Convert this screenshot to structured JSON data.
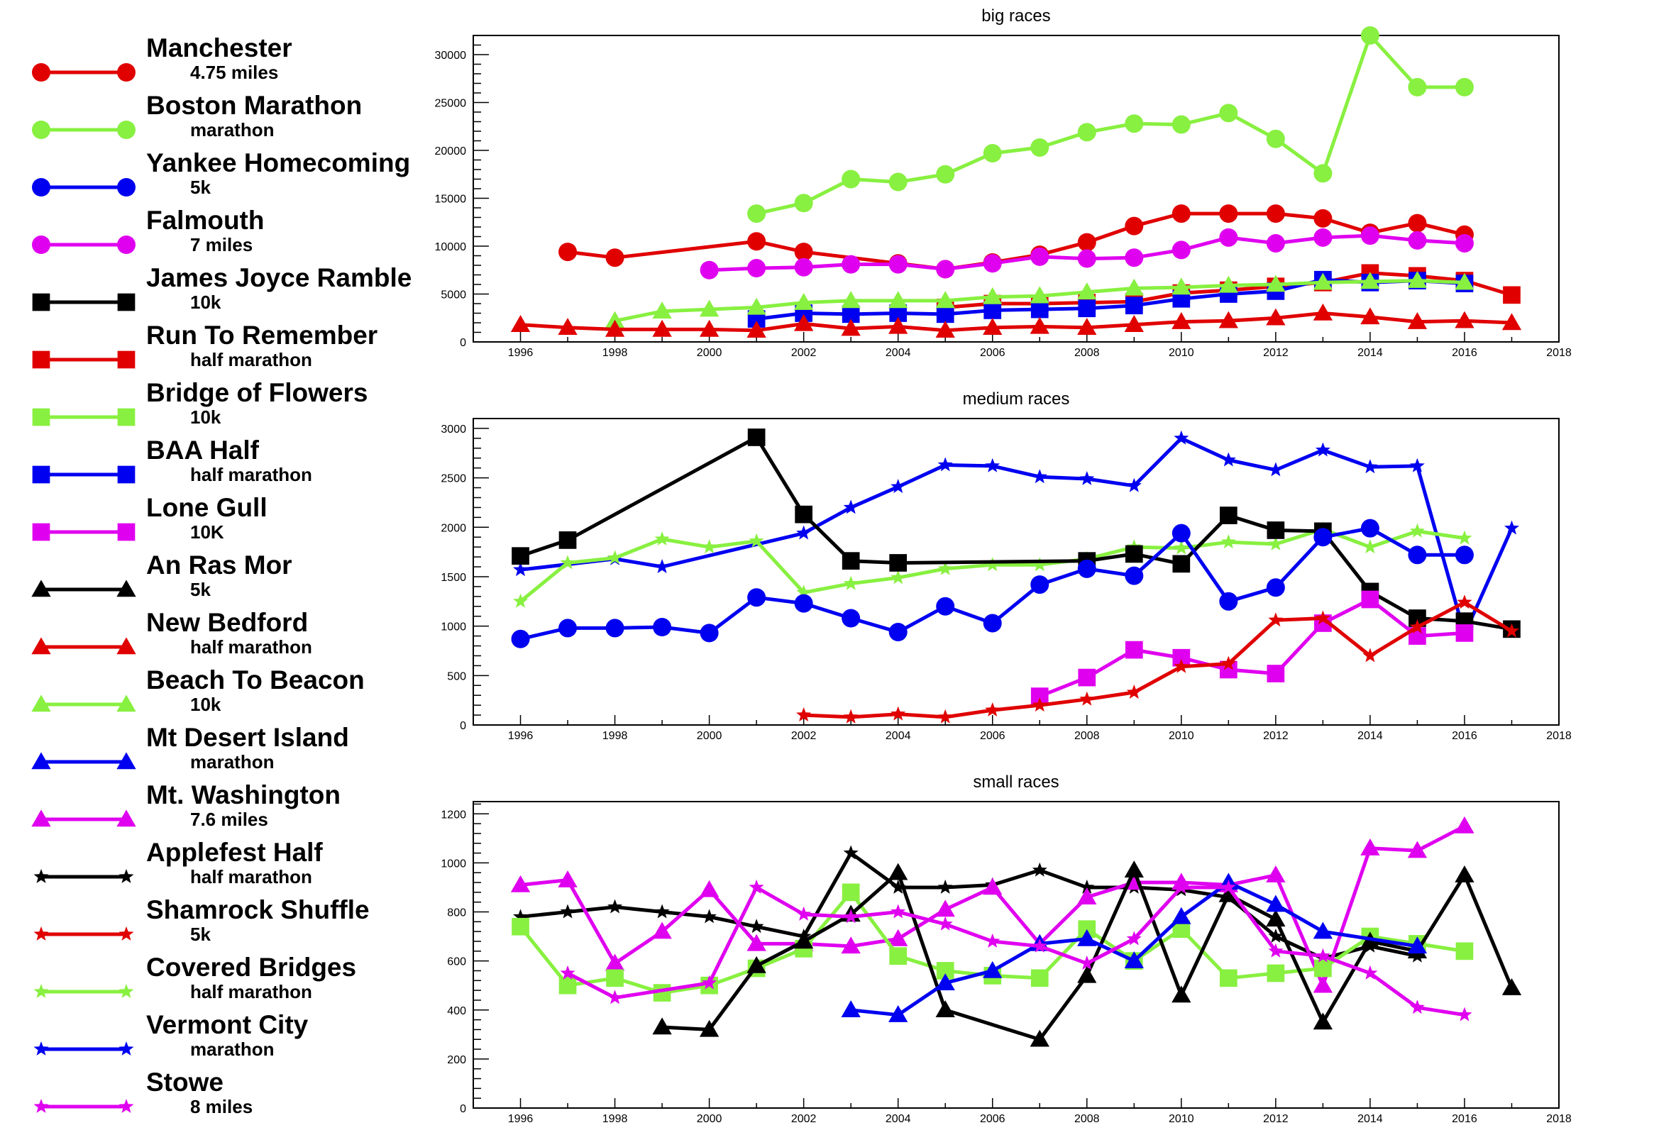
{
  "legend": [
    {
      "name": "Manchester",
      "sub": "4.75 miles",
      "color": "#e00000",
      "marker": "circle"
    },
    {
      "name": "Boston Marathon",
      "sub": "marathon",
      "color": "#88f040",
      "marker": "circle"
    },
    {
      "name": "Yankee Homecoming",
      "sub": "5k",
      "color": "#0000f0",
      "marker": "circle"
    },
    {
      "name": "Falmouth",
      "sub": "7 miles",
      "color": "#e000f0",
      "marker": "circle"
    },
    {
      "name": "James Joyce Ramble",
      "sub": "10k",
      "color": "#000000",
      "marker": "square"
    },
    {
      "name": "Run To Remember",
      "sub": "half marathon",
      "color": "#e00000",
      "marker": "square"
    },
    {
      "name": "Bridge of Flowers",
      "sub": "10k",
      "color": "#88f040",
      "marker": "square"
    },
    {
      "name": "BAA Half",
      "sub": "half marathon",
      "color": "#0000f0",
      "marker": "square"
    },
    {
      "name": "Lone Gull",
      "sub": "10K",
      "color": "#e000f0",
      "marker": "square"
    },
    {
      "name": "An Ras Mor",
      "sub": "5k",
      "color": "#000000",
      "marker": "triangle"
    },
    {
      "name": "New Bedford",
      "sub": "half marathon",
      "color": "#e00000",
      "marker": "triangle"
    },
    {
      "name": "Beach To Beacon",
      "sub": "10k",
      "color": "#88f040",
      "marker": "triangle"
    },
    {
      "name": "Mt Desert Island",
      "sub": "marathon",
      "color": "#0000f0",
      "marker": "triangle"
    },
    {
      "name": "Mt. Washington",
      "sub": "7.6 miles",
      "color": "#e000f0",
      "marker": "triangle"
    },
    {
      "name": "Applefest Half",
      "sub": "half marathon",
      "color": "#000000",
      "marker": "star"
    },
    {
      "name": "Shamrock Shuffle",
      "sub": "5k",
      "color": "#e00000",
      "marker": "star"
    },
    {
      "name": "Covered Bridges",
      "sub": "half marathon",
      "color": "#88f040",
      "marker": "star"
    },
    {
      "name": "Vermont City",
      "sub": "marathon",
      "color": "#0000f0",
      "marker": "star"
    },
    {
      "name": "Stowe",
      "sub": "8 miles",
      "color": "#e000f0",
      "marker": "star"
    }
  ],
  "chart_data": [
    {
      "type": "line",
      "title": "big races",
      "xlim": [
        1995,
        2018
      ],
      "ylim": [
        0,
        32000
      ],
      "xticks": [
        1996,
        1998,
        2000,
        2002,
        2004,
        2006,
        2008,
        2010,
        2012,
        2014,
        2016,
        2018
      ],
      "yticks": [
        0,
        5000,
        10000,
        15000,
        20000,
        25000,
        30000
      ],
      "grid": false,
      "series": [
        {
          "name": "Boston Marathon",
          "color": "#88f040",
          "marker": "circle",
          "x": [
            2001,
            2002,
            2003,
            2004,
            2005,
            2006,
            2007,
            2008,
            2009,
            2010,
            2011,
            2012,
            2013,
            2014,
            2015,
            2016
          ],
          "y": [
            13400,
            14500,
            17000,
            16700,
            17500,
            19700,
            20300,
            21900,
            22800,
            22700,
            23900,
            21200,
            17600,
            32000,
            26600,
            26600
          ]
        },
        {
          "name": "Manchester",
          "color": "#e00000",
          "marker": "circle",
          "x": [
            1997,
            1998,
            2001,
            2002,
            2004,
            2005,
            2006,
            2007,
            2008,
            2009,
            2010,
            2011,
            2012,
            2013,
            2014,
            2015,
            2016
          ],
          "y": [
            9400,
            8800,
            10500,
            9400,
            8200,
            7600,
            8300,
            9100,
            10400,
            12100,
            13400,
            13400,
            13400,
            12900,
            11400,
            12400,
            11200
          ]
        },
        {
          "name": "Falmouth",
          "color": "#e000f0",
          "marker": "circle",
          "x": [
            2000,
            2001,
            2002,
            2003,
            2004,
            2005,
            2006,
            2007,
            2008,
            2009,
            2010,
            2011,
            2012,
            2013,
            2014,
            2015,
            2016
          ],
          "y": [
            7500,
            7700,
            7800,
            8100,
            8100,
            7600,
            8200,
            8900,
            8700,
            8800,
            9600,
            10900,
            10300,
            10900,
            11100,
            10600,
            10300
          ]
        },
        {
          "name": "Run To Remember",
          "color": "#e00000",
          "marker": "square",
          "x": [
            2005,
            2006,
            2007,
            2008,
            2009,
            2010,
            2011,
            2012,
            2013,
            2014,
            2015,
            2016,
            2017
          ],
          "y": [
            3600,
            4000,
            4000,
            4100,
            4200,
            5100,
            5400,
            5800,
            6200,
            7200,
            6900,
            6400,
            4900
          ]
        },
        {
          "name": "BAA Half",
          "color": "#0000f0",
          "marker": "square",
          "x": [
            2001,
            2002,
            2003,
            2004,
            2005,
            2006,
            2007,
            2008,
            2009,
            2010,
            2011,
            2012,
            2013,
            2014,
            2015,
            2016
          ],
          "y": [
            2400,
            3000,
            2900,
            3000,
            2900,
            3300,
            3400,
            3500,
            3800,
            4500,
            5000,
            5300,
            6500,
            6200,
            6400,
            6100
          ]
        },
        {
          "name": "Beach To Beacon",
          "color": "#88f040",
          "marker": "triangle",
          "x": [
            1998,
            1999,
            2000,
            2001,
            2002,
            2003,
            2004,
            2005,
            2006,
            2007,
            2008,
            2009,
            2010,
            2011,
            2012,
            2013,
            2014,
            2015,
            2016
          ],
          "y": [
            2200,
            3200,
            3400,
            3600,
            4100,
            4300,
            4300,
            4300,
            4700,
            4800,
            5200,
            5600,
            5700,
            5900,
            6000,
            6200,
            6300,
            6400,
            6200
          ]
        },
        {
          "name": "New Bedford",
          "color": "#e00000",
          "marker": "triangle",
          "x": [
            1996,
            1997,
            1998,
            1999,
            2000,
            2001,
            2002,
            2003,
            2004,
            2005,
            2006,
            2007,
            2008,
            2009,
            2010,
            2011,
            2012,
            2013,
            2014,
            2015,
            2016,
            2017
          ],
          "y": [
            1800,
            1500,
            1300,
            1300,
            1300,
            1200,
            1900,
            1400,
            1600,
            1200,
            1500,
            1600,
            1500,
            1800,
            2100,
            2200,
            2500,
            3000,
            2600,
            2100,
            2200,
            2000
          ]
        }
      ]
    },
    {
      "type": "line",
      "title": "medium races",
      "xlim": [
        1995,
        2018
      ],
      "ylim": [
        0,
        3100
      ],
      "xticks": [
        1996,
        1998,
        2000,
        2002,
        2004,
        2006,
        2008,
        2010,
        2012,
        2014,
        2016,
        2018
      ],
      "yticks": [
        0,
        500,
        1000,
        1500,
        2000,
        2500,
        3000
      ],
      "grid": false,
      "series": [
        {
          "name": "Vermont City",
          "color": "#0000f0",
          "marker": "star",
          "x": [
            1996,
            1998,
            1999,
            2002,
            2003,
            2004,
            2005,
            2006,
            2007,
            2008,
            2009,
            2010,
            2011,
            2012,
            2013,
            2014,
            2015,
            2016,
            2017
          ],
          "y": [
            1570,
            1680,
            1600,
            1940,
            2200,
            2410,
            2630,
            2620,
            2510,
            2490,
            2420,
            2900,
            2680,
            2580,
            2780,
            2610,
            2620,
            920,
            1990
          ]
        },
        {
          "name": "Covered Bridges",
          "color": "#88f040",
          "marker": "star",
          "x": [
            1996,
            1997,
            1998,
            1999,
            2000,
            2001,
            2002,
            2003,
            2004,
            2005,
            2006,
            2007,
            2008,
            2009,
            2010,
            2011,
            2012,
            2013,
            2014,
            2015,
            2016
          ],
          "y": [
            1250,
            1640,
            1690,
            1880,
            1800,
            1860,
            1340,
            1430,
            1490,
            1580,
            1620,
            1620,
            1680,
            1800,
            1790,
            1850,
            1830,
            1980,
            1800,
            1960,
            1890
          ]
        },
        {
          "name": "James Joyce Ramble",
          "color": "#000000",
          "marker": "square",
          "x": [
            1996,
            1997,
            2001,
            2002,
            2003,
            2004,
            2008,
            2009,
            2010,
            2011,
            2012,
            2013,
            2014,
            2015,
            2016,
            2017
          ],
          "y": [
            1710,
            1870,
            2910,
            2130,
            1660,
            1640,
            1660,
            1730,
            1630,
            2120,
            1970,
            1960,
            1350,
            1080,
            1050,
            970
          ]
        },
        {
          "name": "Yankee Homecoming",
          "color": "#0000f0",
          "marker": "circle",
          "x": [
            1996,
            1997,
            1998,
            1999,
            2000,
            2001,
            2002,
            2003,
            2004,
            2005,
            2006,
            2007,
            2008,
            2009,
            2010,
            2011,
            2012,
            2013,
            2014,
            2015,
            2016
          ],
          "y": [
            870,
            980,
            980,
            990,
            930,
            1290,
            1230,
            1080,
            940,
            1200,
            1030,
            1420,
            1580,
            1510,
            1940,
            1250,
            1390,
            1900,
            1990,
            1720,
            1720
          ]
        },
        {
          "name": "Lone Gull",
          "color": "#e000f0",
          "marker": "square",
          "x": [
            2007,
            2008,
            2009,
            2010,
            2011,
            2012,
            2013,
            2014,
            2015,
            2016
          ],
          "y": [
            290,
            480,
            760,
            680,
            560,
            520,
            1030,
            1270,
            900,
            930
          ]
        },
        {
          "name": "Shamrock Shuffle",
          "color": "#e00000",
          "marker": "star",
          "x": [
            2002,
            2003,
            2004,
            2005,
            2006,
            2007,
            2008,
            2009,
            2010,
            2011,
            2012,
            2013,
            2014,
            2015,
            2016,
            2017
          ],
          "y": [
            100,
            80,
            110,
            80,
            150,
            200,
            260,
            330,
            590,
            620,
            1060,
            1080,
            700,
            990,
            1240,
            950
          ]
        }
      ]
    },
    {
      "type": "line",
      "title": "small races",
      "xlim": [
        1995,
        2018
      ],
      "ylim": [
        0,
        1250
      ],
      "xticks": [
        1996,
        1998,
        2000,
        2002,
        2004,
        2006,
        2008,
        2010,
        2012,
        2014,
        2016,
        2018
      ],
      "yticks": [
        0,
        200,
        400,
        600,
        800,
        1000,
        1200
      ],
      "grid": false,
      "series": [
        {
          "name": "Applefest Half",
          "color": "#000000",
          "marker": "star",
          "x": [
            1996,
            1997,
            1998,
            1999,
            2000,
            2001,
            2002,
            2003,
            2004,
            2005,
            2006,
            2007,
            2008,
            2009,
            2010,
            2011,
            2012,
            2013,
            2014,
            2015
          ],
          "y": [
            780,
            800,
            820,
            800,
            780,
            740,
            700,
            1040,
            900,
            900,
            910,
            970,
            900,
            900,
            890,
            860,
            700,
            610,
            660,
            620
          ]
        },
        {
          "name": "Mt. Washington",
          "color": "#e000f0",
          "marker": "triangle",
          "x": [
            1996,
            1997,
            1998,
            1999,
            2000,
            2001,
            2002,
            2003,
            2004,
            2005,
            2006,
            2007,
            2008,
            2009,
            2010,
            2011,
            2012,
            2013,
            2014,
            2015,
            2016
          ],
          "y": [
            910,
            930,
            590,
            720,
            890,
            670,
            670,
            660,
            690,
            810,
            900,
            670,
            860,
            920,
            920,
            910,
            950,
            500,
            1060,
            1050,
            1150
          ]
        },
        {
          "name": "Bridge of Flowers",
          "color": "#88f040",
          "marker": "square",
          "x": [
            1996,
            1997,
            1998,
            1999,
            2000,
            2001,
            2002,
            2003,
            2004,
            2005,
            2006,
            2007,
            2008,
            2009,
            2010,
            2011,
            2012,
            2013,
            2014,
            2015,
            2016
          ],
          "y": [
            740,
            500,
            530,
            470,
            500,
            570,
            650,
            880,
            620,
            560,
            540,
            530,
            730,
            600,
            730,
            530,
            550,
            570,
            700,
            670,
            640
          ]
        },
        {
          "name": "An Ras Mor",
          "color": "#000000",
          "marker": "triangle",
          "x": [
            1999,
            2000,
            2001,
            2002,
            2003,
            2004,
            2005,
            2007,
            2008,
            2009,
            2010,
            2011,
            2012,
            2013,
            2014,
            2015,
            2016,
            2017
          ],
          "y": [
            330,
            320,
            580,
            680,
            790,
            960,
            400,
            280,
            540,
            970,
            460,
            870,
            770,
            350,
            680,
            640,
            950,
            490
          ]
        },
        {
          "name": "Mt Desert Island",
          "color": "#0000f0",
          "marker": "triangle",
          "x": [
            2003,
            2004,
            2005,
            2006,
            2007,
            2008,
            2009,
            2010,
            2011,
            2012,
            2013,
            2015
          ],
          "y": [
            400,
            380,
            510,
            560,
            670,
            690,
            600,
            780,
            920,
            830,
            720,
            660
          ]
        },
        {
          "name": "Stowe",
          "color": "#e000f0",
          "marker": "star",
          "x": [
            1997,
            1998,
            2000,
            2001,
            2002,
            2003,
            2004,
            2005,
            2006,
            2007,
            2008,
            2009,
            2010,
            2011,
            2012,
            2013,
            2014,
            2015,
            2016
          ],
          "y": [
            550,
            450,
            510,
            900,
            790,
            780,
            800,
            750,
            680,
            660,
            590,
            690,
            900,
            900,
            640,
            620,
            550,
            410,
            380
          ]
        }
      ]
    }
  ]
}
